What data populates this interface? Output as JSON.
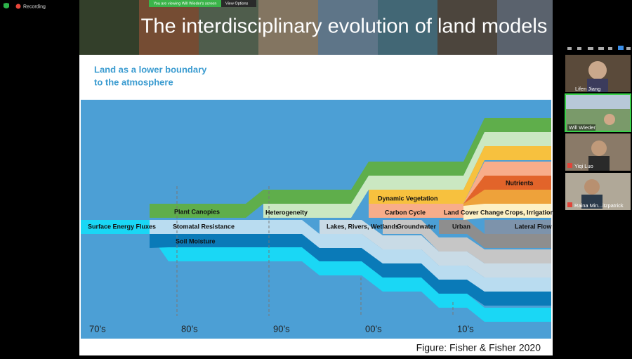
{
  "zoom": {
    "recording": "Recording",
    "share_banner": "You are viewing Will Wieder's screen",
    "view_options": "View Options"
  },
  "slide": {
    "title": "The interdisciplinary evolution of land models",
    "subtitle_lines": [
      "Land as a lower boundary",
      "to the atmosphere"
    ],
    "stream_labels": [
      "Surface Energy Fluxes",
      "Plant Canopies",
      "Stomatal Resistance",
      "Soil Moisture",
      "Heterogeneity",
      "Lakes, Rivers, Wetlands",
      "Dynamic Vegetation",
      "Carbon Cycle",
      "Groundwater",
      "Land Cover Change",
      "Urban",
      "Nutrients",
      "Crops, Irrigation",
      "Lateral Flow"
    ],
    "decades": [
      "70’s",
      "80’s",
      "90’s",
      "00’s",
      "10’s"
    ],
    "caption": "Figure: Fisher & Fisher 2020"
  },
  "participants": [
    "Lifen Jiang",
    "Will Wieder",
    "Yiqi Luo",
    "Raina Min...itzpatrick"
  ]
}
